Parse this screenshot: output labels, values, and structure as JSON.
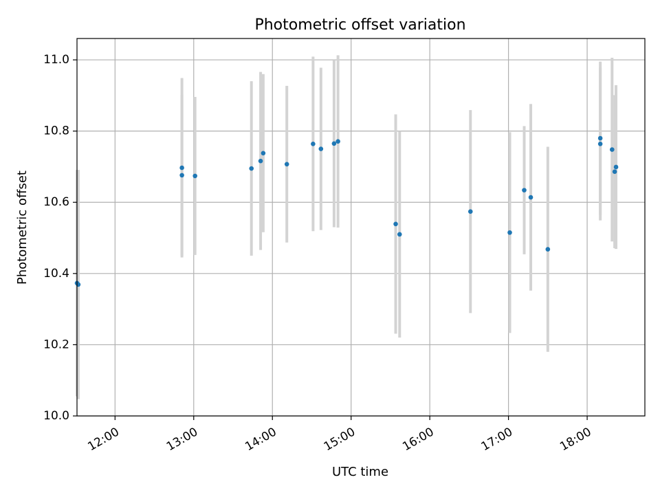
{
  "chart_data": {
    "type": "scatter",
    "title": "Photometric offset variation",
    "xlabel": "UTC time",
    "ylabel": "Photometric offset",
    "x_unit": "hours UTC",
    "xlim": [
      "11:31",
      "18:44"
    ],
    "ylim": [
      10.0,
      11.06
    ],
    "grid": true,
    "x_ticks": [
      "12:00",
      "13:00",
      "14:00",
      "15:00",
      "16:00",
      "17:00",
      "18:00"
    ],
    "y_ticks": [
      "10.0",
      "10.2",
      "10.4",
      "10.6",
      "10.8",
      "11.0"
    ],
    "colors": {
      "point": "#1f77b4",
      "errorbar": "#d3d3d3",
      "grid": "#b0b0b0"
    },
    "points": [
      {
        "x": "11:31",
        "y": 10.373,
        "err": 0.318
      },
      {
        "x": "11:32",
        "y": 10.369,
        "err": 0.322
      },
      {
        "x": "12:51",
        "y": 10.697,
        "err": 0.252
      },
      {
        "x": "12:51",
        "y": 10.676,
        "err": 0.226
      },
      {
        "x": "13:01",
        "y": 10.674,
        "err": 0.222
      },
      {
        "x": "13:44",
        "y": 10.695,
        "err": 0.245
      },
      {
        "x": "13:51",
        "y": 10.716,
        "err": 0.25
      },
      {
        "x": "13:53",
        "y": 10.738,
        "err": 0.222
      },
      {
        "x": "14:11",
        "y": 10.707,
        "err": 0.22
      },
      {
        "x": "14:31",
        "y": 10.764,
        "err": 0.245
      },
      {
        "x": "14:37",
        "y": 10.75,
        "err": 0.228
      },
      {
        "x": "14:47",
        "y": 10.765,
        "err": 0.235
      },
      {
        "x": "14:50",
        "y": 10.771,
        "err": 0.242
      },
      {
        "x": "15:34",
        "y": 10.539,
        "err": 0.308
      },
      {
        "x": "15:37",
        "y": 10.51,
        "err": 0.29
      },
      {
        "x": "16:31",
        "y": 10.574,
        "err": 0.285
      },
      {
        "x": "17:01",
        "y": 10.515,
        "err": 0.282
      },
      {
        "x": "17:12",
        "y": 10.634,
        "err": 0.18
      },
      {
        "x": "17:17",
        "y": 10.614,
        "err": 0.262
      },
      {
        "x": "17:30",
        "y": 10.468,
        "err": 0.288
      },
      {
        "x": "18:10",
        "y": 10.78,
        "err": 0.215
      },
      {
        "x": "18:10",
        "y": 10.764,
        "err": 0.215
      },
      {
        "x": "18:19",
        "y": 10.748,
        "err": 0.258
      },
      {
        "x": "18:21",
        "y": 10.686,
        "err": 0.215
      },
      {
        "x": "18:22",
        "y": 10.699,
        "err": 0.23
      }
    ]
  }
}
